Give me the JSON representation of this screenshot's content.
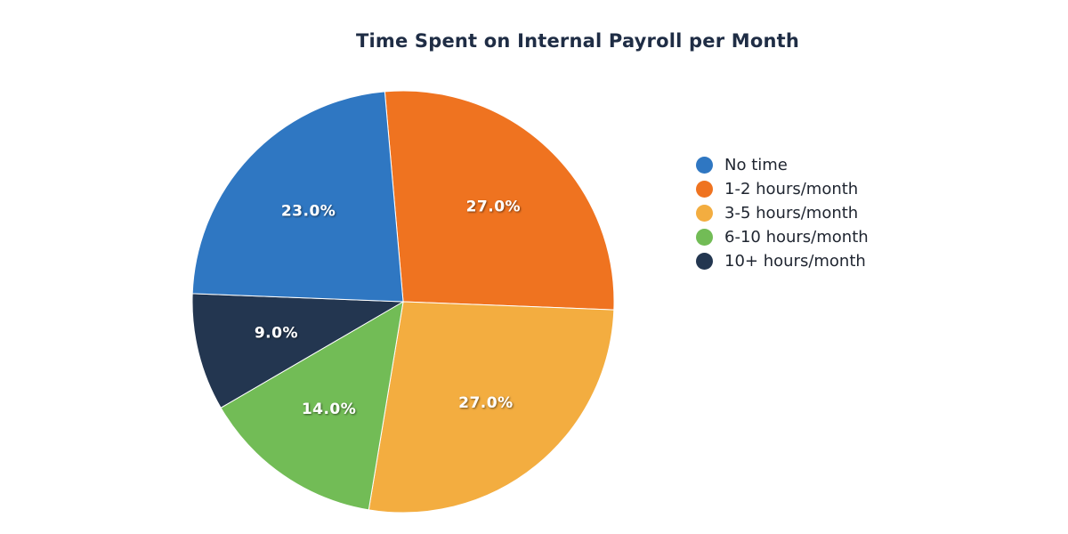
{
  "chart_data": {
    "type": "pie",
    "title": "Time Spent on Internal Payroll per Month",
    "slices": [
      {
        "name": "1-2 hours/month",
        "value": 27.0,
        "label": "27.0%",
        "color": "#ef7320"
      },
      {
        "name": "3-5 hours/month",
        "value": 27.0,
        "label": "27.0%",
        "color": "#f3ad40"
      },
      {
        "name": "6-10 hours/month",
        "value": 14.0,
        "label": "14.0%",
        "color": "#72bc56"
      },
      {
        "name": "10+ hours/month",
        "value": 9.0,
        "label": "9.0%",
        "color": "#233650"
      },
      {
        "name": "No time",
        "value": 23.0,
        "label": "23.0%",
        "color": "#2f77c2"
      }
    ],
    "legend": {
      "placement": "right",
      "items": [
        {
          "name": "No time",
          "color": "#2f77c2"
        },
        {
          "name": "1-2 hours/month",
          "color": "#ef7320"
        },
        {
          "name": "3-5 hours/month",
          "color": "#f3ad40"
        },
        {
          "name": "6-10 hours/month",
          "color": "#72bc56"
        },
        {
          "name": "10+ hours/month",
          "color": "#233650"
        }
      ]
    }
  }
}
